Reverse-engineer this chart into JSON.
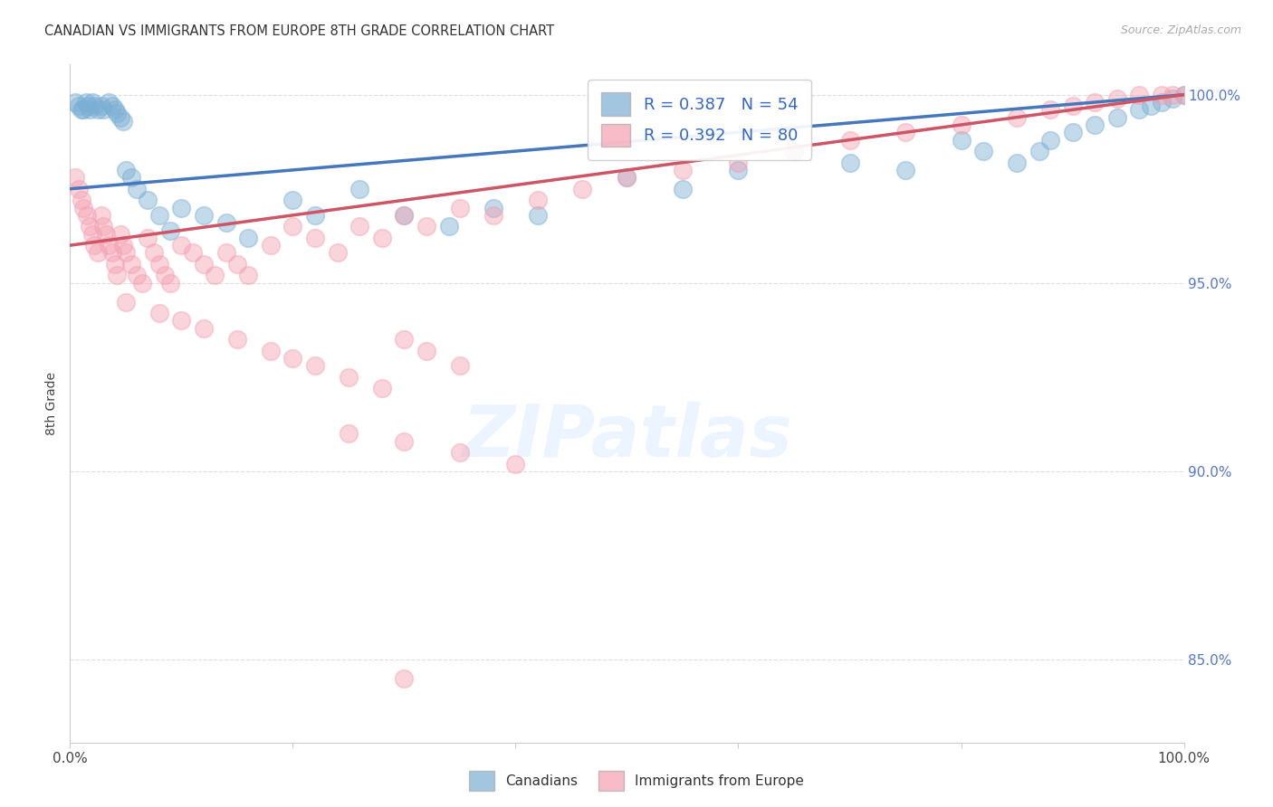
{
  "title": "CANADIAN VS IMMIGRANTS FROM EUROPE 8TH GRADE CORRELATION CHART",
  "source": "Source: ZipAtlas.com",
  "ylabel": "8th Grade",
  "xlim": [
    0.0,
    1.0
  ],
  "ylim": [
    0.828,
    1.008
  ],
  "yticks": [
    0.85,
    0.9,
    0.95,
    1.0
  ],
  "ytick_labels": [
    "85.0%",
    "90.0%",
    "95.0%",
    "100.0%"
  ],
  "xticks": [
    0.0,
    0.2,
    0.4,
    0.6,
    0.8,
    1.0
  ],
  "xtick_labels": [
    "0.0%",
    "",
    "",
    "",
    "",
    "100.0%"
  ],
  "legend_entries": [
    "Canadians",
    "Immigrants from Europe"
  ],
  "blue_color": "#7BAFD4",
  "pink_color": "#F4A0B0",
  "blue_line_color": "#4477BB",
  "pink_line_color": "#CC5566",
  "r_blue": 0.387,
  "n_blue": 54,
  "r_pink": 0.392,
  "n_pink": 80,
  "blue_line_x0": 0.0,
  "blue_line_y0": 0.975,
  "blue_line_x1": 1.0,
  "blue_line_y1": 1.0,
  "pink_line_x0": 0.0,
  "pink_line_y0": 0.96,
  "pink_line_x1": 1.0,
  "pink_line_y1": 1.0,
  "blue_x": [
    0.005,
    0.008,
    0.01,
    0.012,
    0.014,
    0.016,
    0.018,
    0.02,
    0.022,
    0.025,
    0.028,
    0.03,
    0.035,
    0.038,
    0.04,
    0.042,
    0.045,
    0.048,
    0.05,
    0.055,
    0.06,
    0.07,
    0.08,
    0.09,
    0.1,
    0.12,
    0.14,
    0.16,
    0.2,
    0.22,
    0.26,
    0.3,
    0.34,
    0.38,
    0.42,
    0.5,
    0.55,
    0.6,
    0.65,
    0.7,
    0.75,
    0.8,
    0.82,
    0.85,
    0.87,
    0.88,
    0.9,
    0.92,
    0.94,
    0.96,
    0.97,
    0.98,
    0.99,
    1.0
  ],
  "blue_y": [
    0.998,
    0.997,
    0.996,
    0.996,
    0.998,
    0.997,
    0.996,
    0.998,
    0.997,
    0.996,
    0.997,
    0.996,
    0.998,
    0.997,
    0.996,
    0.995,
    0.994,
    0.993,
    0.98,
    0.978,
    0.975,
    0.972,
    0.968,
    0.964,
    0.97,
    0.968,
    0.966,
    0.962,
    0.972,
    0.968,
    0.975,
    0.968,
    0.965,
    0.97,
    0.968,
    0.978,
    0.975,
    0.98,
    0.985,
    0.982,
    0.98,
    0.988,
    0.985,
    0.982,
    0.985,
    0.988,
    0.99,
    0.992,
    0.994,
    0.996,
    0.997,
    0.998,
    0.999,
    1.0
  ],
  "pink_x": [
    0.005,
    0.008,
    0.01,
    0.012,
    0.015,
    0.018,
    0.02,
    0.022,
    0.025,
    0.028,
    0.03,
    0.032,
    0.035,
    0.038,
    0.04,
    0.042,
    0.045,
    0.048,
    0.05,
    0.055,
    0.06,
    0.065,
    0.07,
    0.075,
    0.08,
    0.085,
    0.09,
    0.1,
    0.11,
    0.12,
    0.13,
    0.14,
    0.15,
    0.16,
    0.18,
    0.2,
    0.22,
    0.24,
    0.26,
    0.28,
    0.3,
    0.32,
    0.35,
    0.38,
    0.42,
    0.46,
    0.5,
    0.55,
    0.6,
    0.65,
    0.7,
    0.75,
    0.8,
    0.85,
    0.88,
    0.9,
    0.92,
    0.94,
    0.96,
    0.98,
    0.99,
    1.0,
    0.05,
    0.08,
    0.1,
    0.12,
    0.15,
    0.18,
    0.2,
    0.22,
    0.25,
    0.28,
    0.3,
    0.32,
    0.35,
    0.25,
    0.3,
    0.35,
    0.4,
    0.3
  ],
  "pink_y": [
    0.978,
    0.975,
    0.972,
    0.97,
    0.968,
    0.965,
    0.963,
    0.96,
    0.958,
    0.968,
    0.965,
    0.963,
    0.96,
    0.958,
    0.955,
    0.952,
    0.963,
    0.96,
    0.958,
    0.955,
    0.952,
    0.95,
    0.962,
    0.958,
    0.955,
    0.952,
    0.95,
    0.96,
    0.958,
    0.955,
    0.952,
    0.958,
    0.955,
    0.952,
    0.96,
    0.965,
    0.962,
    0.958,
    0.965,
    0.962,
    0.968,
    0.965,
    0.97,
    0.968,
    0.972,
    0.975,
    0.978,
    0.98,
    0.982,
    0.985,
    0.988,
    0.99,
    0.992,
    0.994,
    0.996,
    0.997,
    0.998,
    0.999,
    1.0,
    1.0,
    1.0,
    1.0,
    0.945,
    0.942,
    0.94,
    0.938,
    0.935,
    0.932,
    0.93,
    0.928,
    0.925,
    0.922,
    0.935,
    0.932,
    0.928,
    0.91,
    0.908,
    0.905,
    0.902,
    0.845
  ]
}
